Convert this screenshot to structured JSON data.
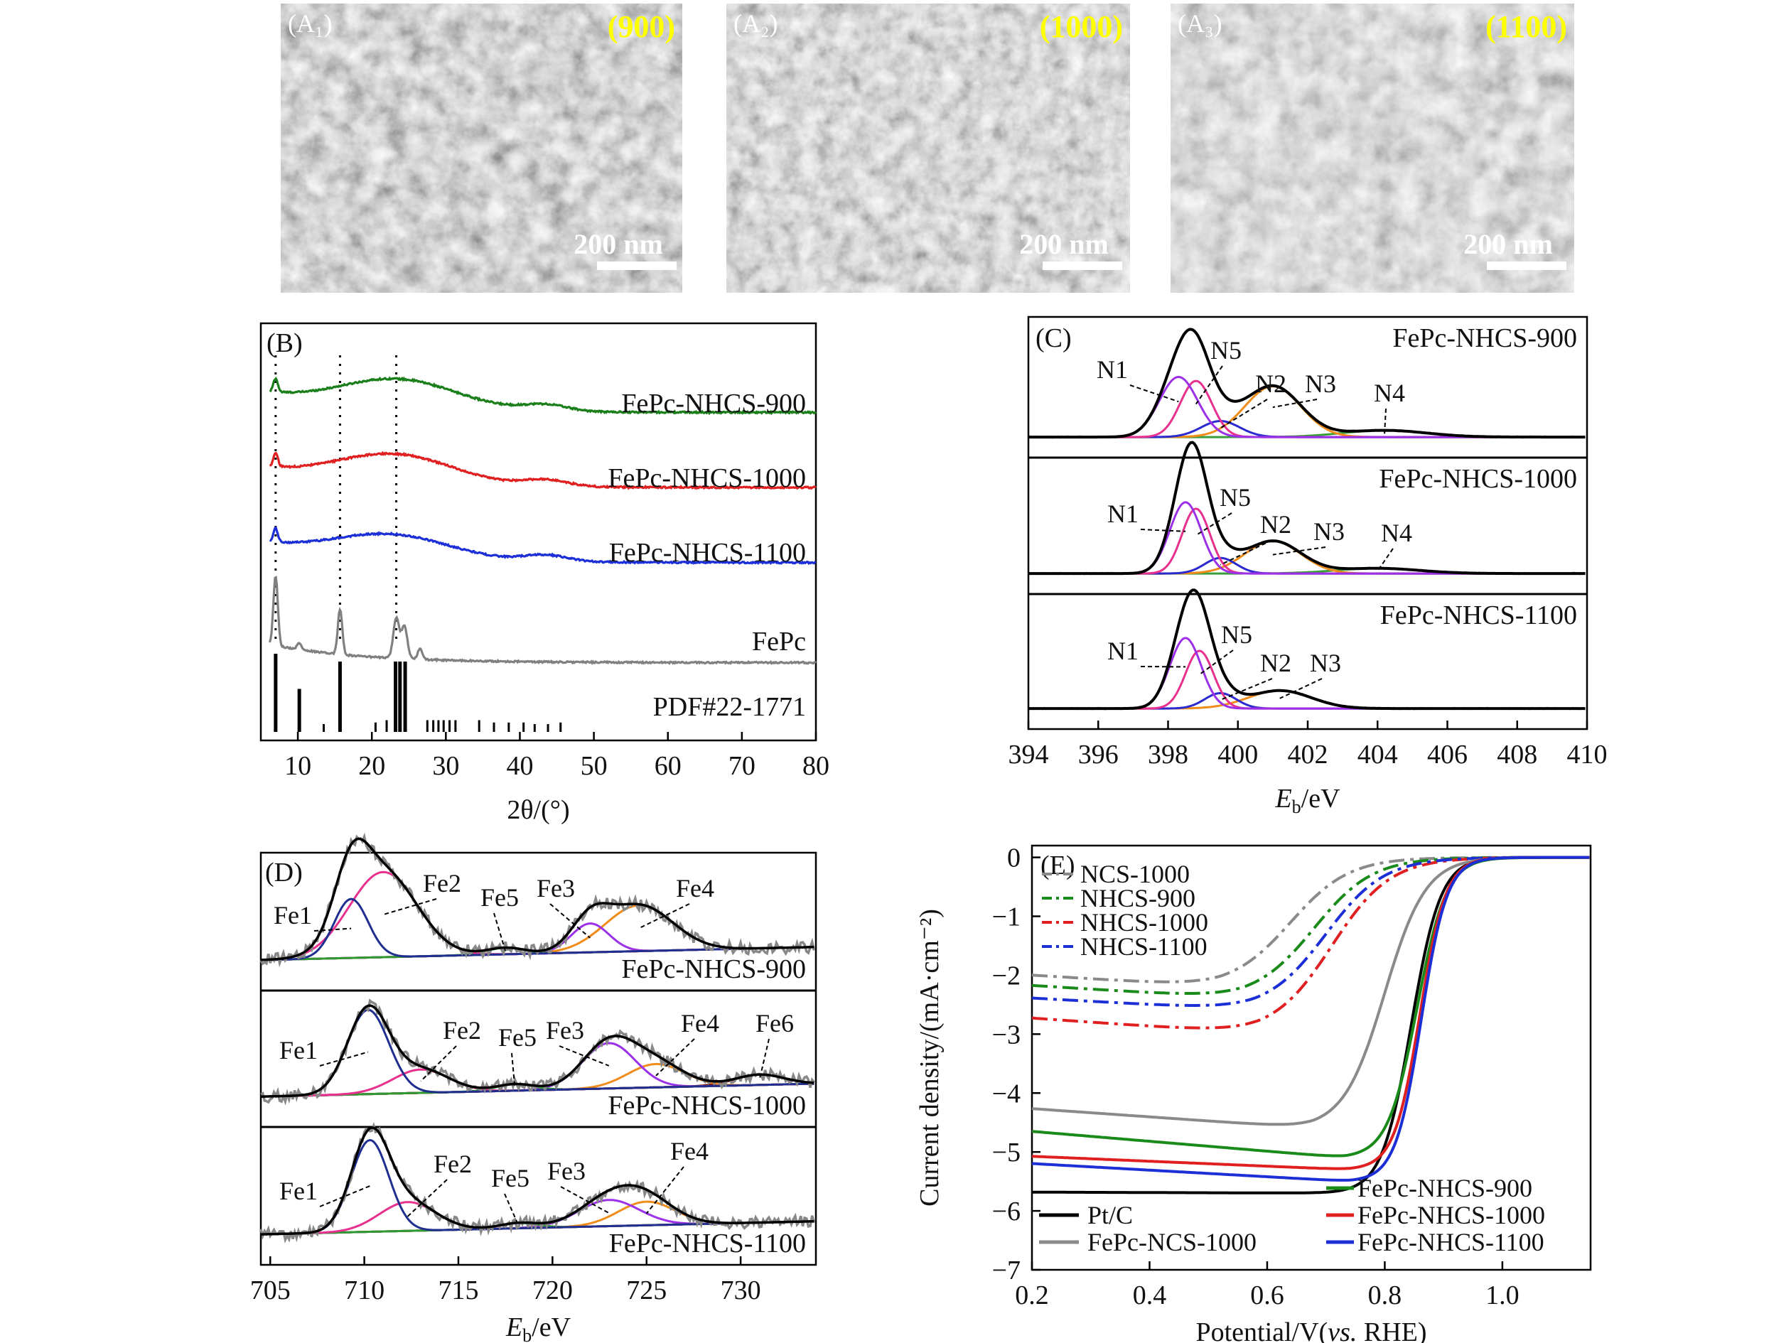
{
  "sem": {
    "panels": [
      {
        "label": "(A₁)",
        "temp": "(900)",
        "scalebar": "200 nm"
      },
      {
        "label": "(A₂)",
        "temp": "(1000)",
        "scalebar": "200 nm"
      },
      {
        "label": "(A₃)",
        "temp": "(1100)",
        "scalebar": "200 nm"
      }
    ],
    "temp_color": "#ffff00"
  },
  "chart_data": [
    {
      "id": "B",
      "type": "line",
      "panel_label": "(B)",
      "xlabel": "2θ/(°)",
      "xlim": [
        5,
        80
      ],
      "xticks": [
        10,
        20,
        30,
        40,
        50,
        60,
        70,
        80
      ],
      "reference_lines_x": [
        7.0,
        15.7,
        23.3
      ],
      "series": [
        {
          "name": "FePc-NHCS-900",
          "color": "#1a7f1a",
          "baseline": 0.88,
          "peaks": [
            [
              7.0,
              0.25,
              0.3
            ],
            [
              23.5,
              0.55,
              8
            ]
          ]
        },
        {
          "name": "FePc-NHCS-1000",
          "color": "#e02020",
          "baseline": 0.7,
          "peaks": [
            [
              7.0,
              0.25,
              0.3
            ],
            [
              23.0,
              0.55,
              8
            ]
          ]
        },
        {
          "name": "FePc-NHCS-1100",
          "color": "#1c2fd6",
          "baseline": 0.52,
          "peaks": [
            [
              7.0,
              0.25,
              0.3
            ],
            [
              22.5,
              0.45,
              8
            ]
          ]
        },
        {
          "name": "FePc",
          "color": "#808080",
          "baseline": 0.28,
          "peaks": [
            [
              7.0,
              1.3,
              0.3
            ],
            [
              15.7,
              0.85,
              0.3
            ],
            [
              23.3,
              0.75,
              0.4
            ],
            [
              24.4,
              0.6,
              0.4
            ],
            [
              26.5,
              0.2,
              0.3
            ],
            [
              10.2,
              0.12,
              0.3
            ]
          ]
        }
      ],
      "reference": {
        "name": "PDF#22-1771",
        "sticks": [
          [
            7.0,
            1.0
          ],
          [
            10.2,
            0.55
          ],
          [
            13.5,
            0.1
          ],
          [
            15.7,
            0.9
          ],
          [
            20.5,
            0.12
          ],
          [
            22.0,
            0.15
          ],
          [
            23.2,
            0.9
          ],
          [
            23.8,
            0.9
          ],
          [
            24.5,
            0.9
          ],
          [
            27.5,
            0.15
          ],
          [
            28.3,
            0.15
          ],
          [
            29.0,
            0.15
          ],
          [
            29.7,
            0.15
          ],
          [
            30.5,
            0.15
          ],
          [
            31.3,
            0.15
          ],
          [
            34.5,
            0.15
          ],
          [
            36.5,
            0.12
          ],
          [
            38.5,
            0.12
          ],
          [
            40.5,
            0.12
          ],
          [
            42.0,
            0.1
          ],
          [
            43.8,
            0.1
          ],
          [
            45.5,
            0.12
          ]
        ]
      }
    },
    {
      "id": "C",
      "type": "line",
      "panel_label": "(C)",
      "xlabel_main": "E",
      "xlabel_sub": "b",
      "xlabel_unit": "/eV",
      "xlim": [
        394,
        410
      ],
      "xticks": [
        394,
        396,
        398,
        400,
        402,
        404,
        406,
        408,
        410
      ],
      "components_colors": {
        "N1": "#9b30e8",
        "N5": "#e8308f",
        "N2": "#2a2ad0",
        "N3": "#f08c1a",
        "N4": "#3a9e3a",
        "envelope": "#000000",
        "raw": "#888888"
      },
      "subplots": [
        {
          "name": "FePc-NHCS-900",
          "labels": [
            "N1",
            "N5",
            "N2",
            "N3",
            "N4"
          ],
          "components": {
            "N1": [
              398.3,
              0.45,
              0.55
            ],
            "N5": [
              398.8,
              0.42,
              0.45
            ],
            "N2": [
              399.5,
              0.12,
              0.55
            ],
            "N3": [
              401.0,
              0.38,
              0.8
            ],
            "N4": [
              404.2,
              0.05,
              1.2
            ]
          }
        },
        {
          "name": "FePc-NHCS-1000",
          "labels": [
            "N1",
            "N5",
            "N2",
            "N3",
            "N4"
          ],
          "components": {
            "N1": [
              398.5,
              0.55,
              0.45
            ],
            "N5": [
              398.8,
              0.5,
              0.4
            ],
            "N2": [
              399.5,
              0.12,
              0.45
            ],
            "N3": [
              401.0,
              0.25,
              0.8
            ],
            "N4": [
              404.0,
              0.04,
              1.2
            ]
          }
        },
        {
          "name": "FePc-NHCS-1100",
          "labels": [
            "N1",
            "N5",
            "N2",
            "N3"
          ],
          "components": {
            "N1": [
              398.5,
              0.55,
              0.45
            ],
            "N5": [
              398.9,
              0.45,
              0.4
            ],
            "N2": [
              399.5,
              0.12,
              0.45
            ],
            "N3": [
              401.2,
              0.14,
              0.9
            ]
          }
        }
      ]
    },
    {
      "id": "D",
      "type": "line",
      "panel_label": "(D)",
      "xlabel_main": "E",
      "xlabel_sub": "b",
      "xlabel_unit": "/eV",
      "xlim": [
        704.5,
        734
      ],
      "xticks": [
        705,
        710,
        715,
        720,
        725,
        730
      ],
      "components_colors": {
        "Fe1": "#1f2f8f",
        "Fe2": "#e8308f",
        "Fe5": "#2f9a2f",
        "Fe3": "#9b30e8",
        "Fe4": "#f08c1a",
        "Fe6": "#7a1010",
        "envelope": "#000000",
        "raw": "#888888"
      },
      "subplots": [
        {
          "name": "FePc-NHCS-900",
          "labels": [
            "Fe1",
            "Fe2",
            "Fe5",
            "Fe3",
            "Fe4"
          ],
          "components": {
            "Fe1": [
              709.3,
              0.45,
              0.9
            ],
            "Fe2": [
              711.0,
              0.65,
              1.8
            ],
            "Fe5": [
              717.5,
              0.05,
              1.0
            ],
            "Fe3": [
              722.0,
              0.22,
              1.0
            ],
            "Fe4": [
              724.6,
              0.35,
              1.8
            ]
          }
        },
        {
          "name": "FePc-NHCS-1000",
          "labels": [
            "Fe1",
            "Fe2",
            "Fe5",
            "Fe3",
            "Fe4",
            "Fe6"
          ],
          "components": {
            "Fe1": [
              710.2,
              0.65,
              1.1
            ],
            "Fe2": [
              713.0,
              0.18,
              1.5
            ],
            "Fe5": [
              718.0,
              0.05,
              1.0
            ],
            "Fe3": [
              723.0,
              0.35,
              1.4
            ],
            "Fe4": [
              725.5,
              0.18,
              1.5
            ],
            "Fe6": [
              731.0,
              0.08,
              1.3
            ]
          }
        },
        {
          "name": "FePc-NHCS-1100",
          "labels": [
            "Fe1",
            "Fe2",
            "Fe5",
            "Fe3",
            "Fe4"
          ],
          "components": {
            "Fe1": [
              710.3,
              0.7,
              1.0
            ],
            "Fe2": [
              712.3,
              0.22,
              1.5
            ],
            "Fe5": [
              718.2,
              0.04,
              1.0
            ],
            "Fe3": [
              723.0,
              0.2,
              1.6
            ],
            "Fe4": [
              725.0,
              0.18,
              1.5
            ]
          }
        }
      ]
    },
    {
      "id": "E",
      "type": "line",
      "panel_label": "(E)",
      "xlabel_prefix": "Potential/V(",
      "xlabel_italic": "vs.",
      "xlabel_suffix": " RHE)",
      "ylabel": "Current density/(mA·cm⁻²)",
      "xlim": [
        0.2,
        1.15
      ],
      "ylim": [
        -7,
        0.2
      ],
      "xticks": [
        0.2,
        0.4,
        0.6,
        0.8,
        1.0
      ],
      "yticks": [
        0,
        -1,
        -2,
        -3,
        -4,
        -5,
        -6,
        -7
      ],
      "series": [
        {
          "name": "NCS-1000",
          "color": "#8a8a8a",
          "dash": "dashdot",
          "limit": -2.2,
          "plateau_slope": 0.9,
          "e_half": 0.64,
          "onset_width": 0.05,
          "legend_group": "top"
        },
        {
          "name": "NHCS-900",
          "color": "#1a8a1a",
          "dash": "dashdot",
          "limit": -2.4,
          "plateau_slope": 0.9,
          "e_half": 0.68,
          "onset_width": 0.05,
          "legend_group": "top"
        },
        {
          "name": "NHCS-1000",
          "color": "#e02020",
          "dash": "dashdot",
          "limit": -3.0,
          "plateau_slope": 1.0,
          "e_half": 0.71,
          "onset_width": 0.05,
          "legend_group": "top"
        },
        {
          "name": "NHCS-1100",
          "color": "#1c2fd6",
          "dash": "dashdot",
          "limit": -2.6,
          "plateau_slope": 0.8,
          "e_half": 0.7,
          "onset_width": 0.05,
          "legend_group": "top"
        },
        {
          "name": "Pt/C",
          "color": "#000000",
          "dash": "solid",
          "limit": -5.7,
          "plateau_slope": 0.05,
          "e_half": 0.845,
          "onset_width": 0.025,
          "legend_group": "bottom-left"
        },
        {
          "name": "FePc-NCS-1000",
          "color": "#8a8a8a",
          "dash": "solid",
          "limit": -4.6,
          "plateau_slope": 1.0,
          "e_half": 0.8,
          "onset_width": 0.035,
          "legend_group": "bottom-left"
        },
        {
          "name": "FePc-NHCS-900",
          "color": "#1a8a1a",
          "dash": "solid",
          "limit": -5.1,
          "plateau_slope": 1.2,
          "e_half": 0.855,
          "onset_width": 0.025,
          "legend_group": "bottom-right"
        },
        {
          "name": "FePc-NHCS-1000",
          "color": "#e02020",
          "dash": "solid",
          "limit": -5.3,
          "plateau_slope": 0.6,
          "e_half": 0.86,
          "onset_width": 0.022,
          "legend_group": "bottom-right"
        },
        {
          "name": "FePc-NHCS-1100",
          "color": "#1c2fd6",
          "dash": "solid",
          "limit": -5.5,
          "plateau_slope": 0.8,
          "e_half": 0.862,
          "onset_width": 0.022,
          "legend_group": "bottom-right"
        }
      ]
    }
  ]
}
